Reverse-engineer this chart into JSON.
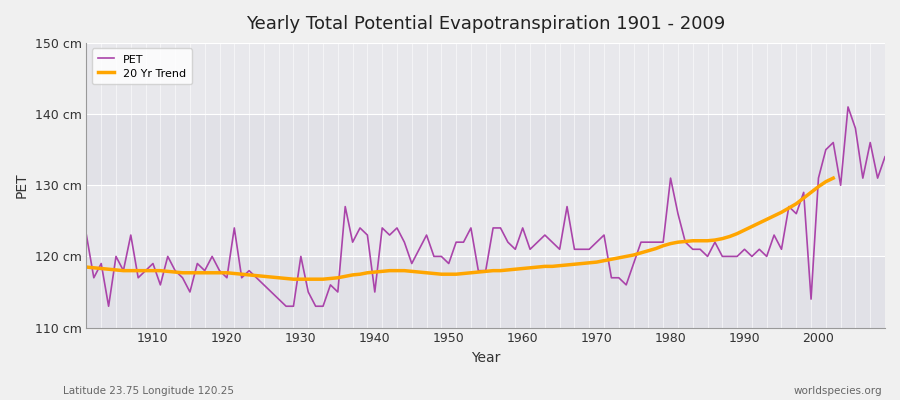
{
  "title": "Yearly Total Potential Evapotranspiration 1901 - 2009",
  "xlabel": "Year",
  "ylabel": "PET",
  "subtitle_left": "Latitude 23.75 Longitude 120.25",
  "subtitle_right": "worldspecies.org",
  "ylim": [
    110,
    150
  ],
  "xlim": [
    1901,
    2009
  ],
  "yticks": [
    110,
    120,
    130,
    140,
    150
  ],
  "ytick_labels": [
    "110 cm",
    "120 cm",
    "130 cm",
    "140 cm",
    "150 cm"
  ],
  "xticks": [
    1910,
    1920,
    1930,
    1940,
    1950,
    1960,
    1970,
    1980,
    1990,
    2000
  ],
  "pet_color": "#AA44AA",
  "trend_color": "#FFA500",
  "background_color": "#F0F0F0",
  "plot_bg_color": "#E8E8EC",
  "legend_label_pet": "PET",
  "legend_label_trend": "20 Yr Trend",
  "years": [
    1901,
    1902,
    1903,
    1904,
    1905,
    1906,
    1907,
    1908,
    1909,
    1910,
    1911,
    1912,
    1913,
    1914,
    1915,
    1916,
    1917,
    1918,
    1919,
    1920,
    1921,
    1922,
    1923,
    1924,
    1925,
    1926,
    1927,
    1928,
    1929,
    1930,
    1931,
    1932,
    1933,
    1934,
    1935,
    1936,
    1937,
    1938,
    1939,
    1940,
    1941,
    1942,
    1943,
    1944,
    1945,
    1946,
    1947,
    1948,
    1949,
    1950,
    1951,
    1952,
    1953,
    1954,
    1955,
    1956,
    1957,
    1958,
    1959,
    1960,
    1961,
    1962,
    1963,
    1964,
    1965,
    1966,
    1967,
    1968,
    1969,
    1970,
    1971,
    1972,
    1973,
    1974,
    1975,
    1976,
    1977,
    1978,
    1979,
    1980,
    1981,
    1982,
    1983,
    1984,
    1985,
    1986,
    1987,
    1988,
    1989,
    1990,
    1991,
    1992,
    1993,
    1994,
    1995,
    1996,
    1997,
    1998,
    1999,
    2000,
    2001,
    2002,
    2003,
    2004,
    2005,
    2006,
    2007,
    2008,
    2009
  ],
  "pet_values": [
    123,
    117,
    119,
    113,
    120,
    118,
    123,
    117,
    118,
    119,
    116,
    120,
    118,
    117,
    115,
    119,
    118,
    120,
    118,
    117,
    124,
    117,
    118,
    117,
    116,
    115,
    114,
    113,
    113,
    120,
    115,
    113,
    113,
    116,
    115,
    127,
    122,
    124,
    123,
    115,
    124,
    123,
    124,
    122,
    119,
    121,
    123,
    120,
    120,
    119,
    122,
    122,
    124,
    118,
    118,
    124,
    124,
    122,
    121,
    124,
    121,
    122,
    123,
    122,
    121,
    127,
    121,
    121,
    121,
    122,
    123,
    117,
    117,
    116,
    119,
    122,
    122,
    122,
    122,
    131,
    126,
    122,
    121,
    121,
    120,
    122,
    120,
    120,
    120,
    121,
    120,
    121,
    120,
    123,
    121,
    127,
    126,
    129,
    114,
    131,
    135,
    136,
    130,
    141,
    138,
    131,
    136,
    131,
    134
  ],
  "trend_values": [
    118.5,
    118.4,
    118.3,
    118.2,
    118.1,
    118.0,
    118.0,
    118.0,
    118.0,
    118.0,
    118.0,
    117.9,
    117.8,
    117.7,
    117.7,
    117.7,
    117.7,
    117.7,
    117.7,
    117.7,
    117.6,
    117.5,
    117.4,
    117.3,
    117.2,
    117.1,
    117.0,
    116.9,
    116.8,
    116.8,
    116.8,
    116.8,
    116.8,
    116.9,
    117.0,
    117.2,
    117.4,
    117.5,
    117.7,
    117.8,
    117.9,
    118.0,
    118.0,
    118.0,
    117.9,
    117.8,
    117.7,
    117.6,
    117.5,
    117.5,
    117.5,
    117.6,
    117.7,
    117.8,
    117.9,
    118.0,
    118.0,
    118.1,
    118.2,
    118.3,
    118.4,
    118.5,
    118.6,
    118.6,
    118.7,
    118.8,
    118.9,
    119.0,
    119.1,
    119.2,
    119.4,
    119.6,
    119.8,
    120.0,
    120.2,
    120.5,
    120.8,
    121.1,
    121.5,
    121.8,
    122.0,
    122.1,
    122.2,
    122.2,
    122.2,
    122.3,
    122.5,
    122.8,
    123.2,
    123.7,
    124.2,
    124.7,
    125.2,
    125.7,
    126.2,
    126.8,
    127.4,
    128.2,
    129.0,
    129.8,
    130.5,
    131.0,
    null,
    null,
    null,
    null,
    null,
    null,
    null
  ]
}
